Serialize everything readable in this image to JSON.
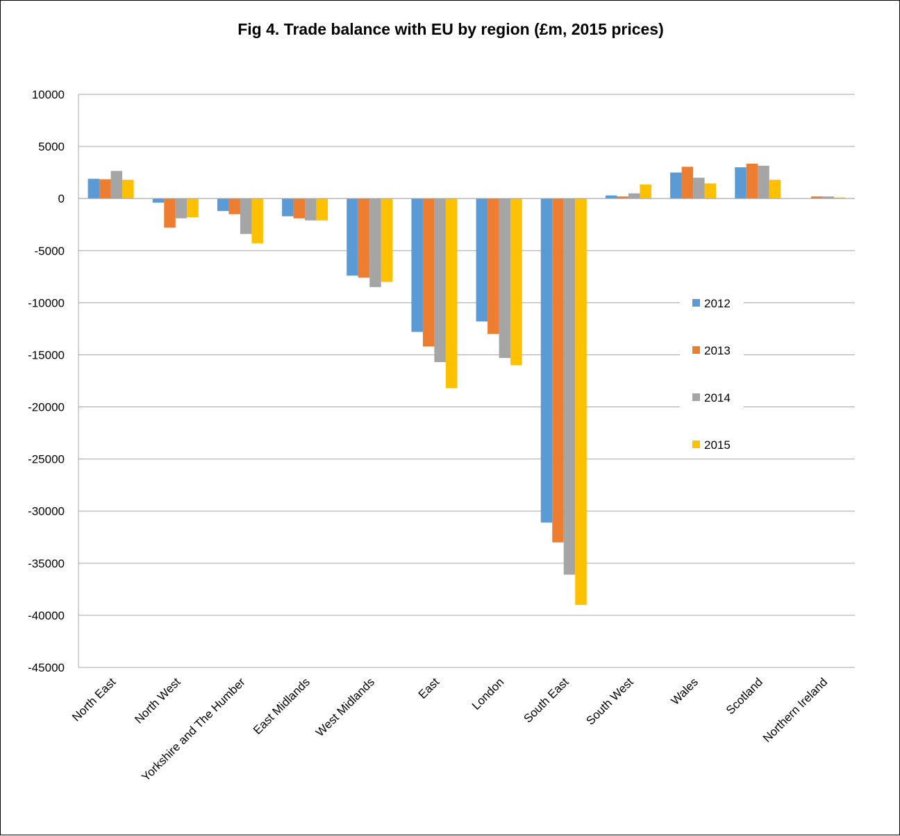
{
  "chart_data": {
    "type": "bar",
    "title": "Fig 4. Trade balance with EU by region (£m, 2015 prices)",
    "xlabel": "",
    "ylabel": "",
    "ylim": [
      -45000,
      10000
    ],
    "yticks": [
      10000,
      5000,
      0,
      -5000,
      -10000,
      -15000,
      -20000,
      -25000,
      -30000,
      -35000,
      -40000,
      -45000
    ],
    "grid": true,
    "legend_position": "right",
    "categories": [
      "North East",
      "North West",
      "Yorkshire and The Humber",
      "East Midlands",
      "West Midlands",
      "East",
      "London",
      "South East",
      "South West",
      "Wales",
      "Scotland",
      "Northern Ireland"
    ],
    "series": [
      {
        "name": "2012",
        "color": "#5B9BD5",
        "values": [
          1900,
          -400,
          -1200,
          -1700,
          -7400,
          -12800,
          -11800,
          -31100,
          300,
          2500,
          3000,
          0
        ]
      },
      {
        "name": "2013",
        "color": "#ED7D31",
        "values": [
          1850,
          -2800,
          -1500,
          -1900,
          -7600,
          -14200,
          -13000,
          -33000,
          200,
          3050,
          3350,
          200
        ]
      },
      {
        "name": "2014",
        "color": "#A5A5A5",
        "values": [
          2650,
          -1900,
          -3400,
          -2100,
          -8500,
          -15700,
          -15300,
          -36100,
          500,
          2000,
          3150,
          200
        ]
      },
      {
        "name": "2015",
        "color": "#FFC000",
        "values": [
          1800,
          -1800,
          -4300,
          -2100,
          -8000,
          -18200,
          -16000,
          -39000,
          1350,
          1450,
          1800,
          100
        ]
      }
    ]
  }
}
